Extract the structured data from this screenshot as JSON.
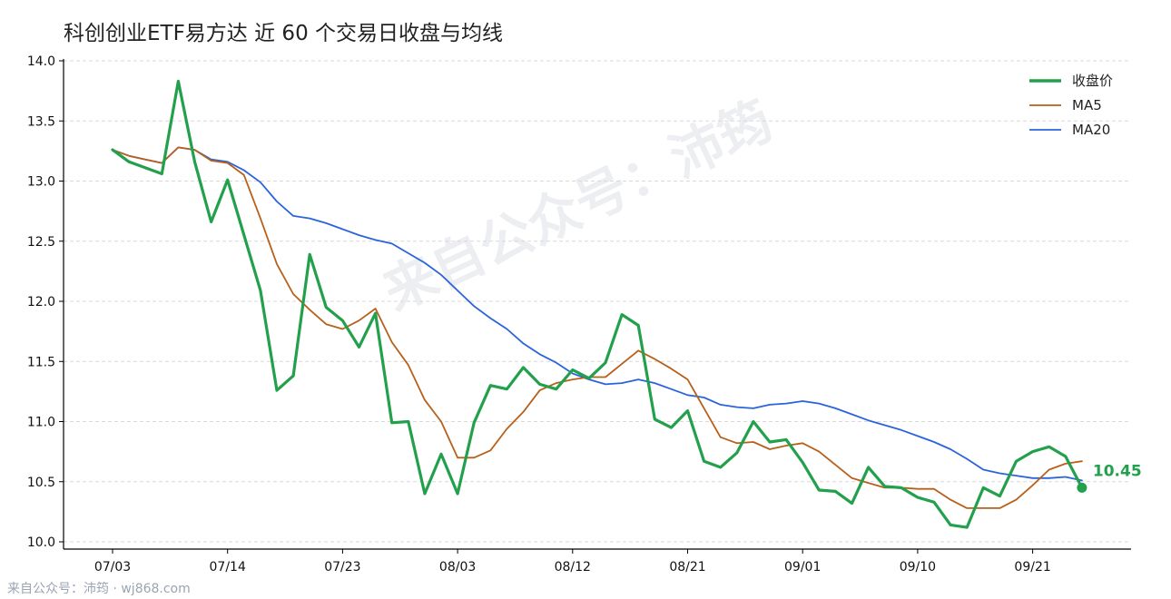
{
  "chart_data": {
    "type": "line",
    "title": "科创创业ETF易方达 近 60 个交易日收盘与均线",
    "ylim": [
      10.0,
      14.0
    ],
    "yticks": [
      "14.0",
      "13.5",
      "13.0",
      "12.5",
      "12.0",
      "11.5",
      "11.0",
      "10.5",
      "10.0"
    ],
    "ytick_values": [
      14.0,
      13.5,
      13.0,
      12.5,
      12.0,
      11.5,
      11.0,
      10.5,
      10.0
    ],
    "xticks": [
      {
        "label": "07/03",
        "index": 0
      },
      {
        "label": "07/14",
        "index": 7
      },
      {
        "label": "07/23",
        "index": 14
      },
      {
        "label": "08/03",
        "index": 21
      },
      {
        "label": "08/12",
        "index": 28
      },
      {
        "label": "08/21",
        "index": 35
      },
      {
        "label": "09/01",
        "index": 42
      },
      {
        "label": "09/10",
        "index": 49
      },
      {
        "label": "09/21",
        "index": 56
      }
    ],
    "grid": true,
    "legend_position": "top-right",
    "series": [
      {
        "name": "收盘价",
        "color": "#22a04b",
        "values": [
          13.26,
          13.16,
          13.11,
          13.06,
          13.83,
          13.16,
          12.66,
          13.01,
          12.55,
          12.09,
          11.26,
          11.38,
          12.39,
          11.95,
          11.84,
          11.62,
          11.9,
          10.99,
          11.0,
          10.4,
          10.73,
          10.4,
          10.99,
          11.3,
          11.27,
          11.45,
          11.31,
          11.27,
          11.43,
          11.36,
          11.49,
          11.89,
          11.8,
          11.02,
          10.95,
          11.09,
          10.67,
          10.62,
          10.74,
          11.0,
          10.83,
          10.85,
          10.66,
          10.43,
          10.42,
          10.32,
          10.62,
          10.46,
          10.45,
          10.37,
          10.33,
          10.14,
          10.12,
          10.45,
          10.38,
          10.67,
          10.75,
          10.79,
          10.71,
          10.45
        ]
      },
      {
        "name": "MA5",
        "color": "#b8601a",
        "values": [
          13.26,
          13.21,
          13.18,
          13.15,
          13.28,
          13.26,
          13.17,
          13.15,
          13.05,
          12.69,
          12.31,
          12.06,
          11.93,
          11.81,
          11.77,
          11.84,
          11.94,
          11.66,
          11.47,
          11.18,
          11.0,
          10.7,
          10.7,
          10.76,
          10.94,
          11.08,
          11.26,
          11.32,
          11.35,
          11.37,
          11.37,
          11.48,
          11.59,
          11.52,
          11.44,
          11.35,
          11.11,
          10.87,
          10.82,
          10.83,
          10.77,
          10.8,
          10.82,
          10.75,
          10.64,
          10.53,
          10.49,
          10.45,
          10.45,
          10.44,
          10.44,
          10.35,
          10.28,
          10.28,
          10.28,
          10.35,
          10.47,
          10.6,
          10.65,
          10.67
        ]
      },
      {
        "name": "MA20",
        "color": "#2a64dc",
        "values": [
          13.26,
          13.21,
          13.18,
          13.15,
          13.28,
          13.26,
          13.18,
          13.16,
          13.09,
          12.99,
          12.83,
          12.71,
          12.69,
          12.65,
          12.6,
          12.55,
          12.51,
          12.48,
          12.4,
          12.32,
          12.22,
          12.09,
          11.96,
          11.86,
          11.77,
          11.65,
          11.56,
          11.49,
          11.4,
          11.35,
          11.31,
          11.32,
          11.35,
          11.32,
          11.27,
          11.22,
          11.2,
          11.14,
          11.12,
          11.11,
          11.14,
          11.15,
          11.17,
          11.15,
          11.11,
          11.06,
          11.01,
          10.97,
          10.93,
          10.88,
          10.83,
          10.77,
          10.69,
          10.6,
          10.57,
          10.55,
          10.53,
          10.53,
          10.54,
          10.51
        ]
      }
    ],
    "end_label": "10.45",
    "watermark": "来自公众号：沛筠",
    "footer": "来自公众号：沛筠 · wj868.com"
  }
}
